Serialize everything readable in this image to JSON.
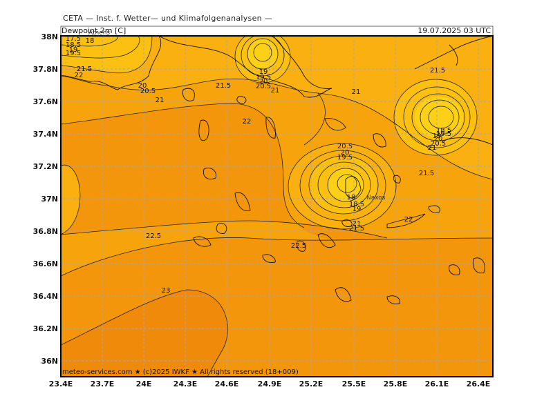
{
  "header": {
    "title": "CETA — Inst. f. Wetter— und Klimafolgenanalysen —",
    "variable": "Dewpoint 2m [C]",
    "valid_time": "19.07.2025 03 UTC"
  },
  "footer": {
    "credit": "meteo-services.com ★ (c)2025 IWKF ★ All rights reserved (18+009)"
  },
  "map": {
    "lon_ticks": [
      "23.4E",
      "23.7E",
      "24E",
      "24.3E",
      "24.6E",
      "24.9E",
      "25.2E",
      "25.5E",
      "25.8E",
      "26.1E",
      "26.4E"
    ],
    "lat_ticks": [
      "38N",
      "37.8N",
      "37.6N",
      "37.4N",
      "37.2N",
      "37N",
      "36.8N",
      "36.6N",
      "36.4N",
      "36.2N",
      "36N"
    ],
    "place_labels": [
      {
        "id": "athens",
        "text": "Athens"
      },
      {
        "id": "naxos",
        "text": "Naxos"
      }
    ],
    "contour_labels": [
      {
        "id": "c1",
        "text": "17.5"
      },
      {
        "id": "c2",
        "text": "18"
      },
      {
        "id": "c3",
        "text": "18.5"
      },
      {
        "id": "c4",
        "text": "19"
      },
      {
        "id": "c5",
        "text": "19.5"
      },
      {
        "id": "c6",
        "text": "21.5"
      },
      {
        "id": "c7",
        "text": "22"
      },
      {
        "id": "c8",
        "text": "20"
      },
      {
        "id": "c9",
        "text": "20.5"
      },
      {
        "id": "c10",
        "text": "21"
      },
      {
        "id": "c11",
        "text": "21.5"
      },
      {
        "id": "c12",
        "text": "19"
      },
      {
        "id": "c13",
        "text": "19.5"
      },
      {
        "id": "c14",
        "text": "20"
      },
      {
        "id": "c15",
        "text": "20.5"
      },
      {
        "id": "c16",
        "text": "21"
      },
      {
        "id": "c17",
        "text": "21"
      },
      {
        "id": "c18",
        "text": "22"
      },
      {
        "id": "c19",
        "text": "20.5"
      },
      {
        "id": "c20",
        "text": "20"
      },
      {
        "id": "c21",
        "text": "19.5"
      },
      {
        "id": "c22",
        "text": "18"
      },
      {
        "id": "c23",
        "text": "18.5"
      },
      {
        "id": "c24",
        "text": "19"
      },
      {
        "id": "c25",
        "text": "21"
      },
      {
        "id": "c26",
        "text": "21.5"
      },
      {
        "id": "c27",
        "text": "22"
      },
      {
        "id": "c28",
        "text": "21.5"
      },
      {
        "id": "c29",
        "text": "21.5"
      },
      {
        "id": "c30",
        "text": "18.5"
      },
      {
        "id": "c31",
        "text": "19"
      },
      {
        "id": "c32",
        "text": "19.5"
      },
      {
        "id": "c33",
        "text": "20"
      },
      {
        "id": "c34",
        "text": "20.5"
      },
      {
        "id": "c35",
        "text": "21"
      },
      {
        "id": "c36",
        "text": "22.5"
      },
      {
        "id": "c37",
        "text": "22.5"
      },
      {
        "id": "c38",
        "text": "23"
      }
    ],
    "colors": {
      "level_23": "#f08a0a",
      "level_22_5": "#f4960c",
      "level_22": "#f7a40c",
      "level_21": "#f9b010",
      "level_20": "#fbc012",
      "level_18": "#fdd018",
      "grid": "#b0b0b0"
    }
  }
}
